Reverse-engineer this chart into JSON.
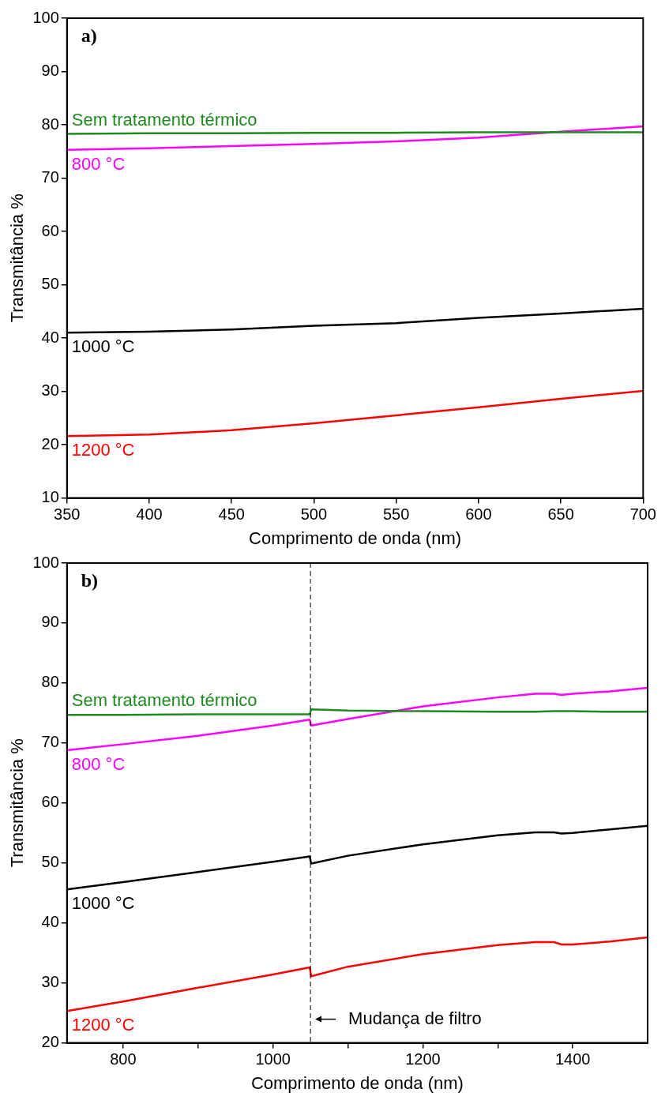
{
  "chart_data": [
    {
      "type": "line",
      "annotations": [
        "a)"
      ],
      "xlabel": "Comprimento de onda (nm)",
      "ylabel": "Transmitância %",
      "x": [
        350,
        400,
        450,
        500,
        550,
        600,
        650,
        700
      ],
      "xlim": [
        350,
        700
      ],
      "xticks": [
        350,
        400,
        450,
        500,
        550,
        600,
        650,
        700
      ],
      "ylim": [
        10,
        100
      ],
      "yticks": [
        10,
        20,
        30,
        40,
        50,
        60,
        70,
        80,
        90,
        100
      ],
      "grid": false,
      "legend": false,
      "marker": "none",
      "line_style": "solid",
      "series": [
        {
          "name": "Sem tratamento térmico",
          "color": "#1f8a1f",
          "values": [
            78.3,
            78.4,
            78.4,
            78.5,
            78.5,
            78.6,
            78.6,
            78.6
          ]
        },
        {
          "name": "800 °C",
          "color": "#ff00ff",
          "values": [
            75.3,
            75.6,
            76.0,
            76.4,
            76.9,
            77.6,
            78.7,
            79.7
          ]
        },
        {
          "name": "1000 °C",
          "color": "#000000",
          "values": [
            41.0,
            41.2,
            41.6,
            42.3,
            42.8,
            43.8,
            44.6,
            45.5
          ]
        },
        {
          "name": "1200 °C",
          "color": "#ff0000",
          "values": [
            21.6,
            21.9,
            22.7,
            24.0,
            25.5,
            27.0,
            28.6,
            30.1
          ]
        }
      ]
    },
    {
      "type": "line",
      "annotations": [
        "b)"
      ],
      "xlabel": "Comprimento de onda (nm)",
      "ylabel": "Transmitância %",
      "x": [
        725,
        800,
        900,
        1000,
        1049,
        1051,
        1100,
        1200,
        1300,
        1350,
        1375,
        1385,
        1400,
        1450,
        1500
      ],
      "xlim": [
        725,
        1500
      ],
      "xticks": [
        800,
        {
          "value": 900,
          "label": null
        },
        1000,
        {
          "value": 1100,
          "label": null
        },
        1200,
        {
          "value": 1300,
          "label": null
        },
        1400
      ],
      "ylim": [
        20,
        100
      ],
      "yticks": [
        20,
        30,
        40,
        50,
        60,
        70,
        80,
        90,
        100
      ],
      "grid": false,
      "legend": false,
      "marker": "none",
      "line_style": "solid",
      "ref_lines": [
        {
          "axis": "x",
          "value": 1050,
          "label": "Mudança de filtro",
          "line_style": "dashed",
          "color": "#000000"
        }
      ],
      "series": [
        {
          "name": "Sem tratamento térmico",
          "color": "#1f8a1f",
          "values": [
            74.7,
            74.7,
            74.8,
            74.8,
            74.8,
            75.6,
            75.4,
            75.3,
            75.2,
            75.2,
            75.3,
            75.3,
            75.3,
            75.2,
            75.2
          ]
        },
        {
          "name": "800 °C",
          "color": "#ff00ff",
          "values": [
            68.8,
            69.8,
            71.2,
            72.9,
            73.9,
            72.9,
            74.0,
            76.1,
            77.6,
            78.2,
            78.2,
            78.0,
            78.2,
            78.6,
            79.2
          ]
        },
        {
          "name": "1000 °C",
          "color": "#000000",
          "values": [
            45.6,
            46.8,
            48.5,
            50.2,
            51.1,
            49.9,
            51.2,
            53.1,
            54.6,
            55.1,
            55.1,
            54.9,
            55.0,
            55.6,
            56.2
          ]
        },
        {
          "name": "1200 °C",
          "color": "#ff0000",
          "values": [
            25.3,
            26.9,
            29.2,
            31.4,
            32.6,
            31.1,
            32.7,
            34.8,
            36.3,
            36.8,
            36.8,
            36.4,
            36.4,
            36.9,
            37.6
          ]
        }
      ]
    }
  ]
}
